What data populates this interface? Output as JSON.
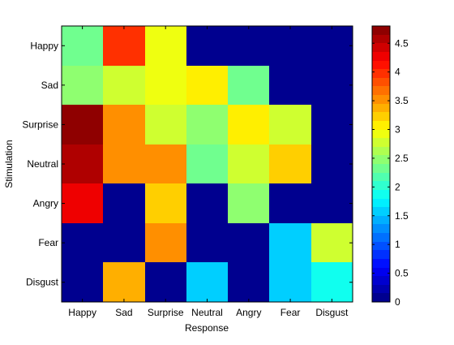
{
  "chart_data": {
    "type": "heatmap",
    "title": "",
    "xlabel": "Response",
    "ylabel": "Stimulation",
    "x_categories": [
      "Happy",
      "Sad",
      "Surprise",
      "Neutral",
      "Angry",
      "Fear",
      "Disgust"
    ],
    "y_categories": [
      "Happy",
      "Sad",
      "Surprise",
      "Neutral",
      "Angry",
      "Fear",
      "Disgust"
    ],
    "values": [
      [
        2.25,
        4.0,
        2.9,
        0,
        0,
        0,
        0
      ],
      [
        2.4,
        2.8,
        2.9,
        3.1,
        2.3,
        0,
        0
      ],
      [
        4.8,
        3.5,
        2.7,
        2.45,
        3.05,
        2.8,
        0
      ],
      [
        4.5,
        3.5,
        3.5,
        2.3,
        2.8,
        3.2,
        0
      ],
      [
        4.3,
        0,
        3.2,
        0,
        2.45,
        0,
        0
      ],
      [
        0,
        0,
        3.5,
        0,
        0,
        1.55,
        2.8
      ],
      [
        0,
        3.4,
        0,
        1.55,
        0,
        1.55,
        1.85
      ]
    ],
    "colorbar": {
      "range": [
        0,
        4.8
      ],
      "ticks": [
        "0",
        "0.5",
        "1",
        "1.5",
        "2",
        "2.5",
        "3",
        "3.5",
        "4",
        "4.5"
      ],
      "tick_values": [
        0,
        0.5,
        1,
        1.5,
        2,
        2.5,
        3,
        3.5,
        4,
        4.5
      ],
      "colormap": "jet",
      "bands": 32
    }
  }
}
